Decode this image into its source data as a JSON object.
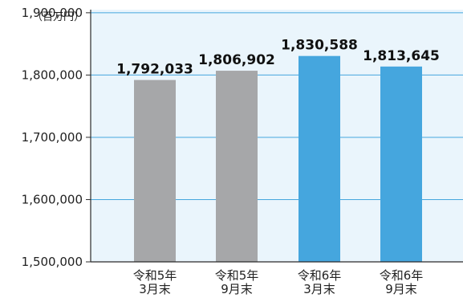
{
  "chart_data": {
    "type": "bar",
    "y_unit_label": "（百万円）",
    "categories": [
      [
        "令和5年",
        "3月末"
      ],
      [
        "令和5年",
        "9月末"
      ],
      [
        "令和6年",
        "3月末"
      ],
      [
        "令和6年",
        "9月末"
      ]
    ],
    "values": [
      1792033,
      1806902,
      1830588,
      1813645
    ],
    "value_labels": [
      "1,792,033",
      "1,806,902",
      "1,830,588",
      "1,813,645"
    ],
    "ylim": [
      1500000,
      1900000
    ],
    "yticks": [
      1500000,
      1600000,
      1700000,
      1800000,
      1900000
    ],
    "ytick_labels": [
      "1,500,000",
      "1,600,000",
      "1,700,000",
      "1,800,000",
      "1,900,000"
    ],
    "bar_colors": [
      "#a6a7a9",
      "#a6a7a9",
      "#45a6de",
      "#45a6de"
    ],
    "plot_background": "#eaf5fc",
    "grid": true,
    "grid_color": "#45a6de"
  }
}
